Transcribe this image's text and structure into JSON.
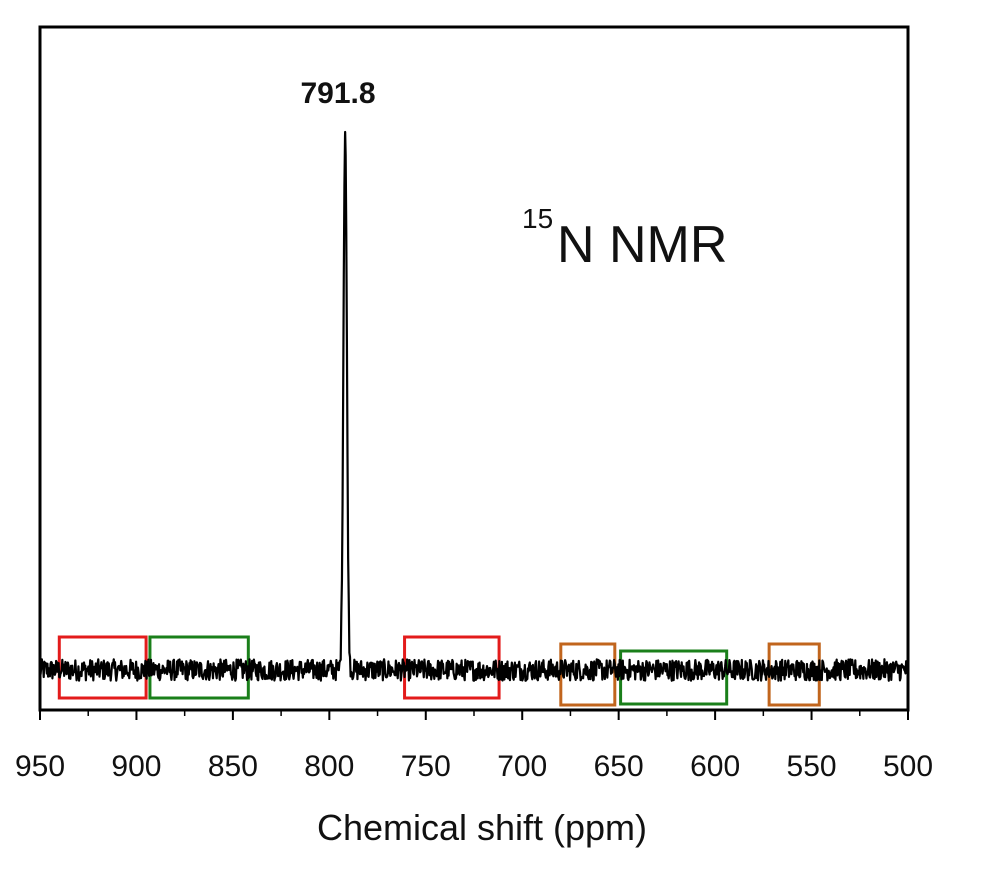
{
  "chart_data": {
    "type": "line",
    "title": "",
    "xlabel": "Chemical shift (ppm)",
    "ylabel": "",
    "xlim": [
      950,
      500
    ],
    "x_reversed": true,
    "x_ticks": [
      950,
      900,
      850,
      800,
      750,
      700,
      650,
      600,
      550,
      500
    ],
    "x_tick_labels": [
      "950",
      "900",
      "850",
      "800",
      "750",
      "700",
      "650",
      "600",
      "550",
      "500"
    ],
    "grid": false,
    "legend": "none",
    "series": [
      {
        "peaks": [
          {
            "x": 791.8,
            "relative_intensity": 1.0
          }
        ],
        "baseline": 0.0,
        "noise_amplitude": 0.02,
        "color": "#000000"
      }
    ],
    "annotations": {
      "peak_label": "791.8",
      "nucleus_superscript": "15",
      "nucleus_text": "N NMR"
    },
    "highlight_regions": [
      {
        "x_range": [
          940,
          895
        ],
        "color": "#e31b1b"
      },
      {
        "x_range": [
          893,
          842
        ],
        "color": "#1a7f1a"
      },
      {
        "x_range": [
          761,
          712
        ],
        "color": "#e31b1b"
      },
      {
        "x_range": [
          680,
          652
        ],
        "color": "#c1651d"
      },
      {
        "x_range": [
          649,
          594
        ],
        "color": "#1a7f1a"
      },
      {
        "x_range": [
          572,
          546
        ],
        "color": "#c1651d"
      }
    ]
  }
}
